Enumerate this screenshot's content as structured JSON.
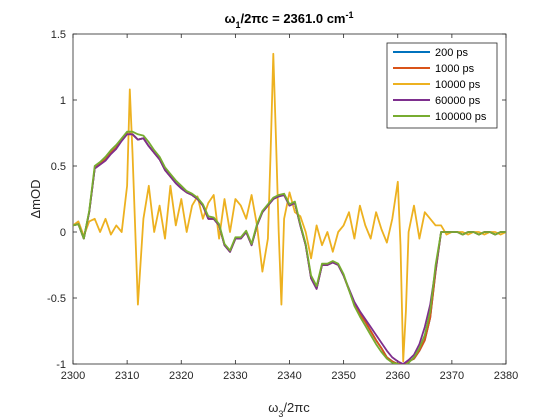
{
  "chart_data": {
    "type": "line",
    "title_main": "ω",
    "title_sub": "1",
    "title_rest": "/2πc = 2361.0 cm",
    "title_sup": "-1",
    "xlabel_main": "ω",
    "xlabel_sub": "3",
    "xlabel_rest": "/2πc",
    "ylabel": "ΔmOD",
    "xlim": [
      2300,
      2380
    ],
    "ylim": [
      -1,
      1.5
    ],
    "xticks": [
      "2300",
      "2310",
      "2320",
      "2330",
      "2340",
      "2350",
      "2360",
      "2370",
      "2380"
    ],
    "yticks": [
      "-1",
      "-0.5",
      "0",
      "0.5",
      "1",
      "1.5"
    ],
    "legend_position": "top-right",
    "series": [
      {
        "name": "200 ps",
        "color": "#0072BD",
        "x": [
          2300,
          2301,
          2302,
          2303,
          2304,
          2305,
          2306,
          2307,
          2308,
          2309,
          2310,
          2311,
          2312,
          2313,
          2314,
          2315,
          2316,
          2317,
          2318,
          2319,
          2320,
          2321,
          2322,
          2323,
          2324,
          2325,
          2326,
          2327,
          2328,
          2329,
          2330,
          2331,
          2332,
          2333,
          2334,
          2335,
          2336,
          2337,
          2338,
          2339,
          2340,
          2341,
          2342,
          2343,
          2344,
          2345,
          2346,
          2347,
          2348,
          2349,
          2350,
          2351,
          2352,
          2353,
          2354,
          2355,
          2356,
          2357,
          2358,
          2359,
          2360,
          2361,
          2362,
          2363,
          2364,
          2365,
          2366,
          2367,
          2368,
          2369,
          2370,
          2371,
          2372,
          2373,
          2374,
          2375,
          2376,
          2377,
          2378,
          2379,
          2380
        ],
        "y": [
          0.05,
          0.06,
          -0.05,
          0.15,
          0.48,
          0.52,
          0.55,
          0.6,
          0.64,
          0.7,
          0.75,
          0.74,
          0.7,
          0.71,
          0.65,
          0.6,
          0.55,
          0.47,
          0.42,
          0.37,
          0.33,
          0.3,
          0.28,
          0.25,
          0.2,
          0.1,
          0.1,
          0.05,
          -0.1,
          -0.15,
          -0.05,
          -0.05,
          0.0,
          -0.1,
          0.05,
          0.15,
          0.2,
          0.25,
          0.27,
          0.28,
          0.2,
          0.22,
          0.05,
          -0.1,
          -0.35,
          -0.43,
          -0.25,
          -0.25,
          -0.23,
          -0.25,
          -0.33,
          -0.44,
          -0.55,
          -0.62,
          -0.68,
          -0.75,
          -0.82,
          -0.88,
          -0.95,
          -0.98,
          -1.0,
          -1.0,
          -0.98,
          -0.96,
          -0.9,
          -0.82,
          -0.65,
          -0.3,
          0.0,
          0.0,
          0.0,
          0.0,
          -0.02,
          0.0,
          0.0,
          -0.02,
          0.0,
          0.0,
          -0.02,
          0.0,
          0.0
        ]
      },
      {
        "name": "1000 ps",
        "color": "#D95319",
        "x": [
          2300,
          2301,
          2302,
          2303,
          2304,
          2305,
          2306,
          2307,
          2308,
          2309,
          2310,
          2311,
          2312,
          2313,
          2314,
          2315,
          2316,
          2317,
          2318,
          2319,
          2320,
          2321,
          2322,
          2323,
          2324,
          2325,
          2326,
          2327,
          2328,
          2329,
          2330,
          2331,
          2332,
          2333,
          2334,
          2335,
          2336,
          2337,
          2338,
          2339,
          2340,
          2341,
          2342,
          2343,
          2344,
          2345,
          2346,
          2347,
          2348,
          2349,
          2350,
          2351,
          2352,
          2353,
          2354,
          2355,
          2356,
          2357,
          2358,
          2359,
          2360,
          2361,
          2362,
          2363,
          2364,
          2365,
          2366,
          2367,
          2368,
          2369,
          2370,
          2371,
          2372,
          2373,
          2374,
          2375,
          2376,
          2377,
          2378,
          2379,
          2380
        ],
        "y": [
          0.05,
          0.06,
          -0.05,
          0.15,
          0.48,
          0.52,
          0.55,
          0.6,
          0.64,
          0.7,
          0.75,
          0.74,
          0.7,
          0.71,
          0.65,
          0.6,
          0.55,
          0.47,
          0.42,
          0.37,
          0.33,
          0.3,
          0.28,
          0.25,
          0.2,
          0.1,
          0.1,
          0.05,
          -0.1,
          -0.15,
          -0.05,
          -0.05,
          0.0,
          -0.1,
          0.05,
          0.15,
          0.2,
          0.25,
          0.27,
          0.28,
          0.2,
          0.22,
          0.05,
          -0.1,
          -0.35,
          -0.43,
          -0.25,
          -0.25,
          -0.23,
          -0.25,
          -0.33,
          -0.44,
          -0.55,
          -0.62,
          -0.68,
          -0.75,
          -0.82,
          -0.88,
          -0.95,
          -0.98,
          -1.0,
          -1.0,
          -0.98,
          -0.96,
          -0.9,
          -0.82,
          -0.65,
          -0.3,
          0.0,
          0.0,
          0.0,
          0.0,
          -0.02,
          0.0,
          0.0,
          -0.02,
          0.0,
          0.0,
          -0.02,
          0.0,
          0.0
        ]
      },
      {
        "name": "10000 ps",
        "color": "#EDB120",
        "x": [
          2300,
          2301,
          2302,
          2303,
          2304,
          2305,
          2306,
          2307,
          2308,
          2309,
          2310,
          2310.5,
          2311,
          2312,
          2313,
          2314,
          2315,
          2316,
          2317,
          2318,
          2319,
          2320,
          2321,
          2322,
          2323,
          2324,
          2325,
          2326,
          2327,
          2328,
          2329,
          2330,
          2331,
          2332,
          2333,
          2334,
          2335,
          2336,
          2336.5,
          2337,
          2337.5,
          2338,
          2338.5,
          2339,
          2340,
          2341,
          2342,
          2343,
          2344,
          2345,
          2346,
          2347,
          2348,
          2349,
          2350,
          2351,
          2352,
          2353,
          2354,
          2355,
          2356,
          2357,
          2358,
          2359,
          2360,
          2360.5,
          2361,
          2361.5,
          2362,
          2363,
          2364,
          2365,
          2366,
          2367,
          2368,
          2369,
          2370,
          2371,
          2372,
          2373,
          2374,
          2375,
          2376,
          2377,
          2378,
          2379,
          2380
        ],
        "y": [
          0.05,
          0.08,
          -0.03,
          0.08,
          0.1,
          0.0,
          0.1,
          -0.02,
          0.05,
          0.0,
          0.35,
          1.08,
          0.6,
          -0.55,
          0.1,
          0.35,
          0.0,
          0.2,
          -0.05,
          0.35,
          0.05,
          0.25,
          0.0,
          0.2,
          0.27,
          0.1,
          0.22,
          0.28,
          -0.05,
          0.25,
          0.0,
          0.25,
          0.2,
          0.1,
          0.28,
          0.05,
          -0.3,
          -0.05,
          0.6,
          1.35,
          0.7,
          0.0,
          -0.55,
          0.1,
          0.3,
          0.15,
          0.12,
          0.0,
          -0.2,
          0.05,
          -0.1,
          0.0,
          -0.15,
          0.0,
          0.05,
          0.15,
          -0.05,
          0.2,
          0.05,
          -0.05,
          0.15,
          0.02,
          -0.08,
          0.1,
          0.38,
          -0.1,
          -0.98,
          -0.6,
          0.0,
          0.2,
          -0.05,
          0.15,
          0.1,
          0.05,
          0.05,
          -0.02,
          0.0,
          0.0,
          0.0,
          -0.02,
          0.0,
          0.0,
          -0.02,
          0.0,
          0.0,
          -0.02,
          0.0
        ]
      },
      {
        "name": "60000 ps",
        "color": "#7E2F8E",
        "x": [
          2300,
          2301,
          2302,
          2303,
          2304,
          2305,
          2306,
          2307,
          2308,
          2309,
          2310,
          2311,
          2312,
          2313,
          2314,
          2315,
          2316,
          2317,
          2318,
          2319,
          2320,
          2321,
          2322,
          2323,
          2324,
          2325,
          2326,
          2327,
          2328,
          2329,
          2330,
          2331,
          2332,
          2333,
          2334,
          2335,
          2336,
          2337,
          2338,
          2339,
          2340,
          2341,
          2342,
          2343,
          2344,
          2345,
          2346,
          2347,
          2348,
          2349,
          2350,
          2351,
          2352,
          2353,
          2354,
          2355,
          2356,
          2357,
          2358,
          2359,
          2360,
          2361,
          2362,
          2363,
          2364,
          2365,
          2366,
          2367,
          2368,
          2369,
          2370,
          2371,
          2372,
          2373,
          2374,
          2375,
          2376,
          2377,
          2378,
          2379,
          2380
        ],
        "y": [
          0.05,
          0.06,
          -0.05,
          0.15,
          0.48,
          0.51,
          0.54,
          0.59,
          0.63,
          0.69,
          0.74,
          0.74,
          0.7,
          0.71,
          0.65,
          0.6,
          0.55,
          0.47,
          0.42,
          0.37,
          0.33,
          0.3,
          0.28,
          0.25,
          0.2,
          0.1,
          0.1,
          0.05,
          -0.1,
          -0.15,
          -0.05,
          -0.05,
          0.0,
          -0.1,
          0.05,
          0.15,
          0.2,
          0.25,
          0.27,
          0.28,
          0.2,
          0.22,
          0.05,
          -0.1,
          -0.35,
          -0.43,
          -0.25,
          -0.25,
          -0.23,
          -0.25,
          -0.33,
          -0.43,
          -0.53,
          -0.6,
          -0.66,
          -0.72,
          -0.78,
          -0.84,
          -0.9,
          -0.95,
          -0.98,
          -1.0,
          -0.97,
          -0.93,
          -0.85,
          -0.72,
          -0.55,
          -0.28,
          0.0,
          0.0,
          0.0,
          0.0,
          -0.02,
          0.0,
          0.0,
          -0.02,
          0.0,
          0.0,
          -0.02,
          0.0,
          0.0
        ]
      },
      {
        "name": "100000 ps",
        "color": "#77AC30",
        "x": [
          2300,
          2301,
          2302,
          2303,
          2304,
          2305,
          2306,
          2307,
          2308,
          2309,
          2310,
          2311,
          2312,
          2313,
          2314,
          2315,
          2316,
          2317,
          2318,
          2319,
          2320,
          2321,
          2322,
          2323,
          2324,
          2325,
          2326,
          2327,
          2328,
          2329,
          2330,
          2331,
          2332,
          2333,
          2334,
          2335,
          2336,
          2337,
          2338,
          2339,
          2340,
          2341,
          2342,
          2343,
          2344,
          2345,
          2346,
          2347,
          2348,
          2349,
          2350,
          2351,
          2352,
          2353,
          2354,
          2355,
          2356,
          2357,
          2358,
          2359,
          2360,
          2361,
          2362,
          2363,
          2364,
          2365,
          2366,
          2367,
          2368,
          2369,
          2370,
          2371,
          2372,
          2373,
          2374,
          2375,
          2376,
          2377,
          2378,
          2379,
          2380
        ],
        "y": [
          0.05,
          0.06,
          -0.05,
          0.16,
          0.5,
          0.53,
          0.57,
          0.62,
          0.66,
          0.71,
          0.76,
          0.76,
          0.74,
          0.73,
          0.68,
          0.62,
          0.57,
          0.49,
          0.44,
          0.39,
          0.35,
          0.31,
          0.29,
          0.26,
          0.21,
          0.12,
          0.11,
          0.06,
          -0.09,
          -0.14,
          -0.04,
          -0.04,
          0.01,
          -0.09,
          0.06,
          0.16,
          0.21,
          0.26,
          0.28,
          0.29,
          0.21,
          0.23,
          0.06,
          -0.09,
          -0.33,
          -0.41,
          -0.24,
          -0.24,
          -0.22,
          -0.24,
          -0.32,
          -0.44,
          -0.56,
          -0.64,
          -0.71,
          -0.78,
          -0.85,
          -0.91,
          -0.96,
          -0.99,
          -1.0,
          -1.02,
          -0.99,
          -0.95,
          -0.88,
          -0.78,
          -0.6,
          -0.25,
          0.0,
          0.0,
          0.0,
          0.0,
          -0.02,
          0.0,
          0.0,
          -0.02,
          0.0,
          0.0,
          -0.02,
          0.0,
          0.0
        ]
      }
    ]
  }
}
